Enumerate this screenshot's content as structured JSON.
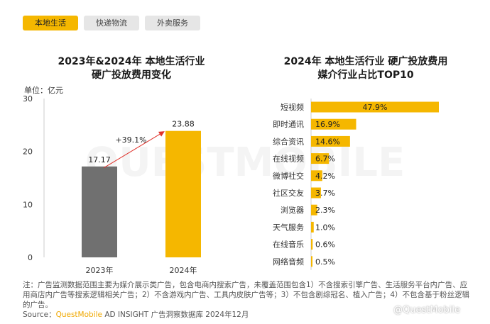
{
  "tabs": [
    {
      "label": "本地生活",
      "active": true
    },
    {
      "label": "快递物流",
      "active": false
    },
    {
      "label": "外卖服务",
      "active": false
    }
  ],
  "left_chart": {
    "title_line1": "2023年&2024年 本地生活行业",
    "title_line2": "硬广投放费用变化",
    "unit": "单位：亿元",
    "growth_label": "+39.1%"
  },
  "right_chart": {
    "title_line1": "2024年 本地生活行业 硬广投放费用",
    "title_line2": "媒介行业占比TOP10"
  },
  "note": {
    "text": "注：广告监测数据范围主要为媒介展示类广告，包含电商内搜索广告，未覆盖范围包含1）不含搜索引擎广告、生活服务平台内广告、应用商店内广告等搜索逻辑相关广告；2）不含游戏内广告、工具内皮肤广告等；3）不包含剧综冠名、植入广告；4）不包含基于粉丝逻辑的广告。",
    "source_prefix": "Source：",
    "source_brand": "QuestMobile",
    "source_rest": " AD INSIGHT 广告洞察数据库 2024年12月"
  },
  "watermark": "QUESTMOBILE",
  "footer": {
    "text": "@QuestMobile"
  },
  "colors": {
    "accent": "#f5b700",
    "bar_gray": "#707070",
    "arrow": "#e0322b"
  },
  "chart_data": [
    {
      "type": "bar",
      "categories": [
        "2023年",
        "2024年"
      ],
      "values": [
        17.17,
        23.88
      ],
      "ylim": [
        0,
        30
      ],
      "yticks": [
        0,
        10,
        20,
        30
      ],
      "bar_colors": [
        "#707070",
        "#f5b700"
      ],
      "annotation": "+39.1%"
    },
    {
      "type": "bar",
      "orientation": "horizontal",
      "categories": [
        "短视频",
        "即时通讯",
        "综合资讯",
        "在线视频",
        "微博社交",
        "社区交友",
        "浏览器",
        "天气服务",
        "在线音乐",
        "网络音频"
      ],
      "values": [
        47.9,
        16.9,
        14.6,
        6.7,
        4.2,
        3.7,
        2.3,
        1.0,
        0.6,
        0.5
      ],
      "value_labels": [
        "47.9%",
        "16.9%",
        "14.6%",
        "6.7%",
        "4.2%",
        "3.7%",
        "2.3%",
        "1.0%",
        "0.6%",
        "0.5%"
      ],
      "bar_color": "#f5b700"
    }
  ]
}
